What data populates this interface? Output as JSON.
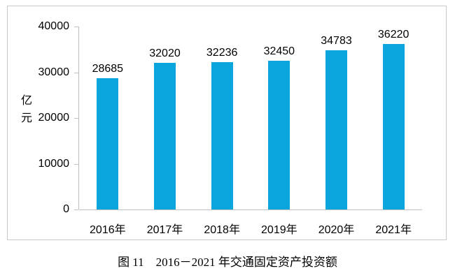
{
  "figure": {
    "caption": "图 11　2016－2021 年交通固定资产投资额"
  },
  "chart_data": {
    "type": "bar",
    "title": "",
    "categories": [
      "2016年",
      "2017年",
      "2018年",
      "2019年",
      "2020年",
      "2021年"
    ],
    "values": [
      28685,
      32020,
      32236,
      32450,
      34783,
      36220
    ],
    "value_labels": [
      "28685",
      "32020",
      "32236",
      "32450",
      "34783",
      "36220"
    ],
    "xlabel": "",
    "ylabel": "亿元",
    "ylim": [
      0,
      40000
    ],
    "yticks": [
      0,
      10000,
      20000,
      30000,
      40000
    ],
    "ytick_labels": [
      "0",
      "10000",
      "20000",
      "30000",
      "40000"
    ],
    "grid": false,
    "legend": "none",
    "data_labels": true,
    "colors": {
      "bar": "#0aa5dc",
      "axis": "#bfbfbf",
      "text": "#000000",
      "frame_border": "#c9c9c9"
    }
  }
}
